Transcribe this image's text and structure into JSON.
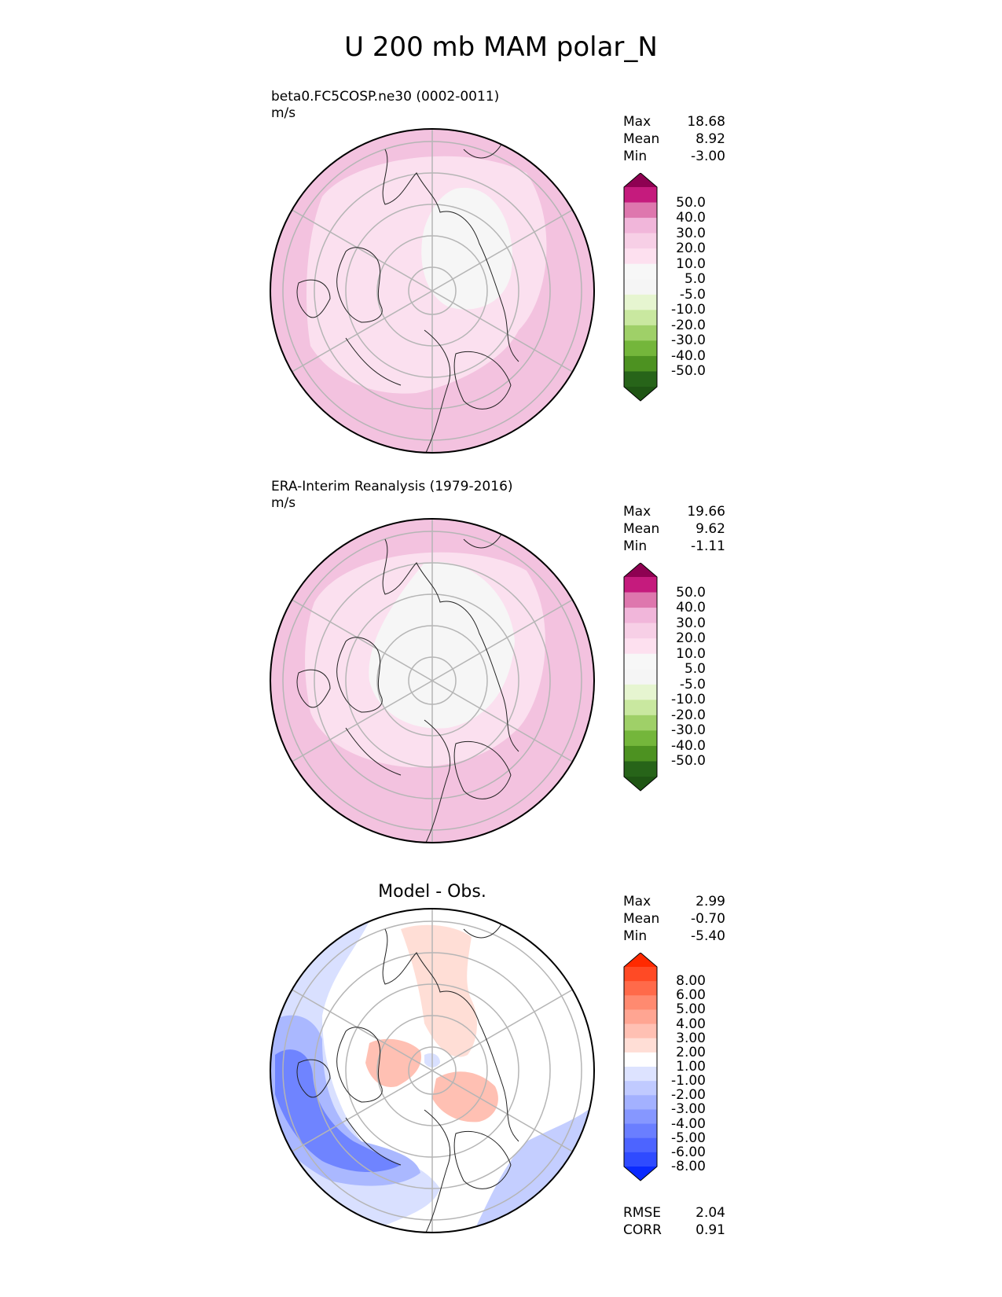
{
  "title": "U 200 mb MAM polar_N",
  "panels": [
    {
      "id": "test",
      "label": "beta0.FC5COSP.ne30 (0002-0011)",
      "units": "m/s",
      "stats": [
        {
          "name": "Max",
          "value": "18.68"
        },
        {
          "name": "Mean",
          "value": "8.92"
        },
        {
          "name": "Min",
          "value": "-3.00"
        }
      ],
      "colorbar": {
        "colors": [
          "#8e0152",
          "#c51b7d",
          "#de77ae",
          "#f1b6da",
          "#f7cfe6",
          "#fde0ef",
          "#f7f7f7",
          "#f5f5f5",
          "#e6f5d0",
          "#c9e8a0",
          "#9fd068",
          "#74b63b",
          "#4d9221",
          "#276419",
          "#1f5514"
        ],
        "labels": [
          "50.0",
          "40.0",
          "30.0",
          "20.0",
          "10.0",
          "5.0",
          "-5.0",
          "-10.0",
          "-20.0",
          "-30.0",
          "-40.0",
          "-50.0"
        ]
      }
    },
    {
      "id": "reference",
      "label": "ERA-Interim Reanalysis (1979-2016)",
      "units": "m/s",
      "stats": [
        {
          "name": "Max",
          "value": "19.66"
        },
        {
          "name": "Mean",
          "value": "9.62"
        },
        {
          "name": "Min",
          "value": "-1.11"
        }
      ],
      "colorbar": {
        "colors": [
          "#8e0152",
          "#c51b7d",
          "#de77ae",
          "#f1b6da",
          "#f7cfe6",
          "#fde0ef",
          "#f7f7f7",
          "#f5f5f5",
          "#e6f5d0",
          "#c9e8a0",
          "#9fd068",
          "#74b63b",
          "#4d9221",
          "#276419",
          "#1f5514"
        ],
        "labels": [
          "50.0",
          "40.0",
          "30.0",
          "20.0",
          "10.0",
          "5.0",
          "-5.0",
          "-10.0",
          "-20.0",
          "-30.0",
          "-40.0",
          "-50.0"
        ]
      }
    },
    {
      "id": "difference",
      "title": "Model - Obs.",
      "stats": [
        {
          "name": "Max",
          "value": "2.99"
        },
        {
          "name": "Mean",
          "value": "-0.70"
        },
        {
          "name": "Min",
          "value": "-5.40"
        }
      ],
      "metrics": [
        {
          "name": "RMSE",
          "value": "2.04"
        },
        {
          "name": "CORR",
          "value": "0.91"
        }
      ],
      "colorbar": {
        "colors": [
          "#ff2a00",
          "#ff4a25",
          "#ff6a4a",
          "#ff8a70",
          "#ffa592",
          "#ffc0b3",
          "#ffded6",
          "#ffffff",
          "#dde3ff",
          "#c0caff",
          "#a3b1ff",
          "#8697ff",
          "#6a7eff",
          "#4d64ff",
          "#2f4bff",
          "#0a2aff"
        ],
        "labels": [
          "8.00",
          "6.00",
          "5.00",
          "4.00",
          "3.00",
          "2.00",
          "1.00",
          "-1.00",
          "-2.00",
          "-3.00",
          "-4.00",
          "-5.00",
          "-6.00",
          "-8.00"
        ]
      }
    }
  ]
}
